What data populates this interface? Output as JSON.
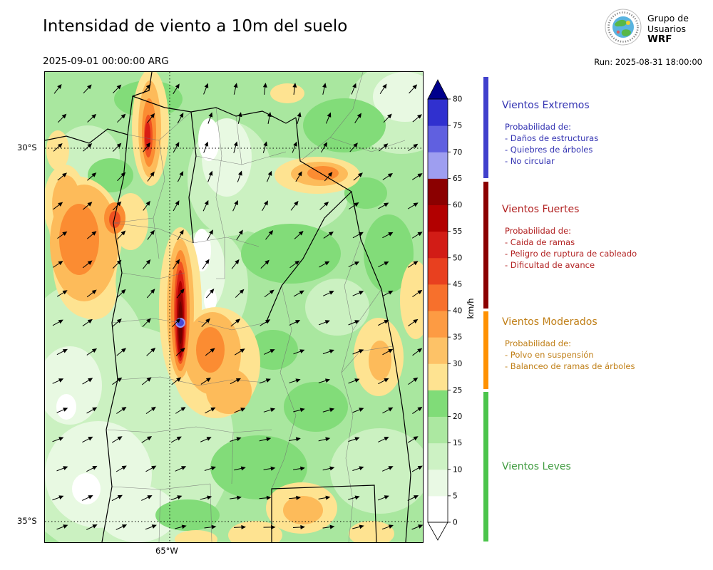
{
  "header": {
    "title": "Intensidad de viento a 10m del suelo",
    "valid_time": "2025-09-01 00:00:00 ARG",
    "run_label": "Run: 2025-08-31 18:00:00"
  },
  "logo": {
    "line1": "Grupo de",
    "line2": "Usuarios",
    "line3": "WRF"
  },
  "map": {
    "lat_labels": [
      "30°S",
      "35°S"
    ],
    "lon_label": "65°W"
  },
  "colorbar": {
    "unit": "km/h",
    "ticks": [
      0,
      5,
      10,
      15,
      20,
      25,
      30,
      35,
      40,
      45,
      50,
      55,
      60,
      65,
      70,
      75,
      80
    ],
    "segment_colors_bottom_to_top": [
      "#ffffff",
      "#e9f9e4",
      "#cdf2c4",
      "#ace8a1",
      "#80dc78",
      "#fee391",
      "#fdc267",
      "#fd9b43",
      "#f7702c",
      "#e8401f",
      "#d21c16",
      "#b20000",
      "#8b0000",
      "#9e9ef0",
      "#6060e0",
      "#3030cf"
    ],
    "over_color": "#00008c",
    "under_color": "#ffffff"
  },
  "legend": {
    "sections": [
      {
        "title": "Vientos Extremos",
        "color": "#3333b2",
        "strip_color": "#4040cc",
        "prob_label": "Probabilidad de:",
        "items": [
          "- Daños de estructuras",
          "- Quiebres de árboles",
          "- No circular"
        ]
      },
      {
        "title": "Vientos Fuertes",
        "color": "#b22222",
        "strip_color": "#8b0000",
        "prob_label": "Probabilidad de:",
        "items": [
          "- Caida de ramas",
          "- Peligro de ruptura de cableado",
          "- Dificultad de avance"
        ]
      },
      {
        "title": "Vientos Moderados",
        "color": "#c07f17",
        "strip_color": "#ff9100",
        "prob_label": "Probabilidad de:",
        "items": [
          "- Polvo en suspensión",
          "- Balanceo de ramas de árboles"
        ]
      },
      {
        "title": "Vientos Leves",
        "color": "#3f9b3f",
        "strip_color": "#4bc44b",
        "items": []
      }
    ]
  }
}
